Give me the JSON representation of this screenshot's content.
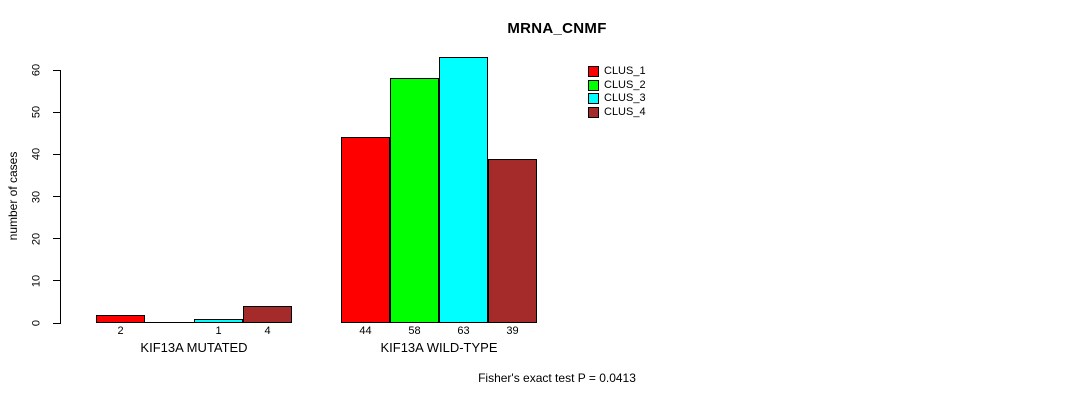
{
  "chart_data": {
    "type": "bar",
    "title": "MRNA_CNMF",
    "ylabel": "number of cases",
    "xlabel": "",
    "ylim": [
      0,
      60
    ],
    "yticks": [
      0,
      10,
      20,
      30,
      40,
      50,
      60
    ],
    "grid": false,
    "legend_position": "top-right-inside",
    "categories": [
      "KIF13A MUTATED",
      "KIF13A WILD-TYPE"
    ],
    "series": [
      {
        "name": "CLUS_1",
        "color": "#ff0000",
        "values": [
          2,
          44
        ]
      },
      {
        "name": "CLUS_2",
        "color": "#00ff00",
        "values": [
          0,
          58
        ]
      },
      {
        "name": "CLUS_3",
        "color": "#00ffff",
        "values": [
          1,
          63
        ]
      },
      {
        "name": "CLUS_4",
        "color": "#a52a2a",
        "values": [
          4,
          39
        ]
      }
    ],
    "bar_value_labels": [
      [
        "2",
        "",
        "1",
        "4"
      ],
      [
        "44",
        "58",
        "63",
        "39"
      ]
    ],
    "annotation": "Fisher's exact test P = 0.0413",
    "colors": {
      "axis": "#000000",
      "bar_border": "#000000",
      "background": "#ffffff"
    }
  }
}
